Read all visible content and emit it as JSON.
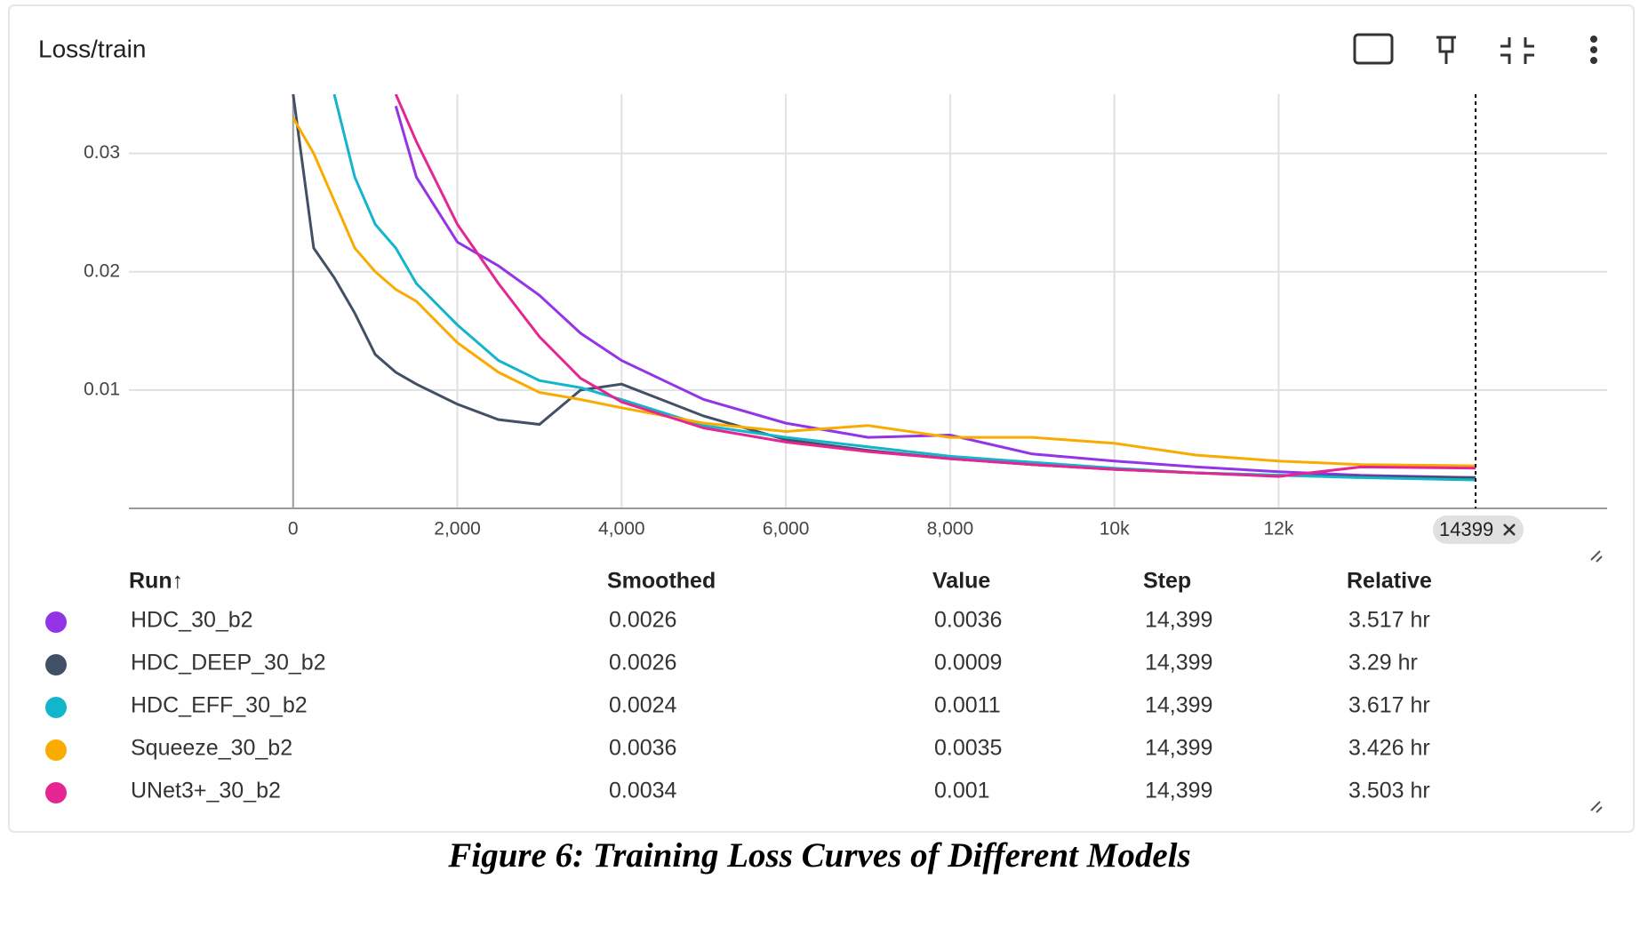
{
  "header": {
    "title": "Loss/train"
  },
  "chart_data": {
    "type": "line",
    "x": [
      0,
      250,
      500,
      750,
      1000,
      1250,
      1500,
      2000,
      2500,
      3000,
      3500,
      4000,
      5000,
      6000,
      7000,
      8000,
      9000,
      10000,
      11000,
      12000,
      13000,
      14399
    ],
    "series": [
      {
        "name": "HDC_30_b2",
        "color": "#9334e6",
        "values": [
          null,
          null,
          null,
          null,
          null,
          0.034,
          0.028,
          0.0225,
          0.0205,
          0.018,
          0.0148,
          0.0125,
          0.0092,
          0.0072,
          0.006,
          0.0062,
          0.0046,
          0.004,
          0.0035,
          0.0031,
          0.0028,
          0.0026
        ]
      },
      {
        "name": "HDC_DEEP_30_b2",
        "color": "#425066",
        "values": [
          0.035,
          0.022,
          0.0195,
          0.0165,
          0.013,
          0.0115,
          0.0105,
          0.0088,
          0.0075,
          0.0071,
          0.01,
          0.0105,
          0.0078,
          0.0058,
          0.0049,
          0.0042,
          0.0037,
          0.0033,
          0.003,
          0.0028,
          0.0027,
          0.0026
        ]
      },
      {
        "name": "HDC_EFF_30_b2",
        "color": "#12b5cb",
        "values": [
          null,
          null,
          0.035,
          0.028,
          0.024,
          0.022,
          0.019,
          0.0155,
          0.0125,
          0.0108,
          0.0102,
          0.0092,
          0.007,
          0.006,
          0.0052,
          0.0044,
          0.0039,
          0.0034,
          0.003,
          0.0028,
          0.0026,
          0.0024
        ]
      },
      {
        "name": "Squeeze_30_b2",
        "color": "#f9ab00",
        "values": [
          0.033,
          0.03,
          0.026,
          0.022,
          0.02,
          0.0185,
          0.0175,
          0.014,
          0.0115,
          0.0098,
          0.0092,
          0.0085,
          0.0072,
          0.0065,
          0.007,
          0.006,
          0.006,
          0.0055,
          0.0045,
          0.004,
          0.0037,
          0.0036
        ]
      },
      {
        "name": "UNet3+_30_b2",
        "color": "#e52592",
        "values": [
          null,
          null,
          null,
          null,
          null,
          0.035,
          0.031,
          0.024,
          0.019,
          0.0145,
          0.011,
          0.009,
          0.0068,
          0.0056,
          0.0048,
          0.0042,
          0.0037,
          0.0033,
          0.003,
          0.0027,
          0.0035,
          0.0034
        ]
      }
    ],
    "xlim": [
      -2000,
      16000
    ],
    "xticks": [
      0,
      {
        "value": 2000,
        "label": "2,000"
      },
      {
        "value": 4000,
        "label": "4,000"
      },
      {
        "value": 6000,
        "label": "6,000"
      },
      {
        "value": 8000,
        "label": "8,000"
      },
      {
        "value": 10000,
        "label": "10k"
      },
      {
        "value": 12000,
        "label": "12k"
      }
    ],
    "ylim": [
      0,
      0.035
    ],
    "yticks": [
      0.01,
      0.02,
      0.03
    ],
    "grid": true,
    "cursor_step": 14399
  },
  "table": {
    "header": [
      "Run↑",
      "Smoothed",
      "Value",
      "Step",
      "Relative"
    ],
    "rows": [
      [
        "0.0026",
        "0.0036",
        "14,399",
        "3.517 hr"
      ],
      [
        "0.0026",
        "0.0009",
        "14,399",
        "3.29 hr"
      ],
      [
        "0.0024",
        "0.0011",
        "14,399",
        "3.617 hr"
      ],
      [
        "0.0036",
        "0.0035",
        "14,399",
        "3.426 hr"
      ],
      [
        "0.0034",
        "0.001",
        "14,399",
        "3.503 hr"
      ]
    ]
  },
  "caption": "Figure 6: Training Loss Curves of Different Models"
}
